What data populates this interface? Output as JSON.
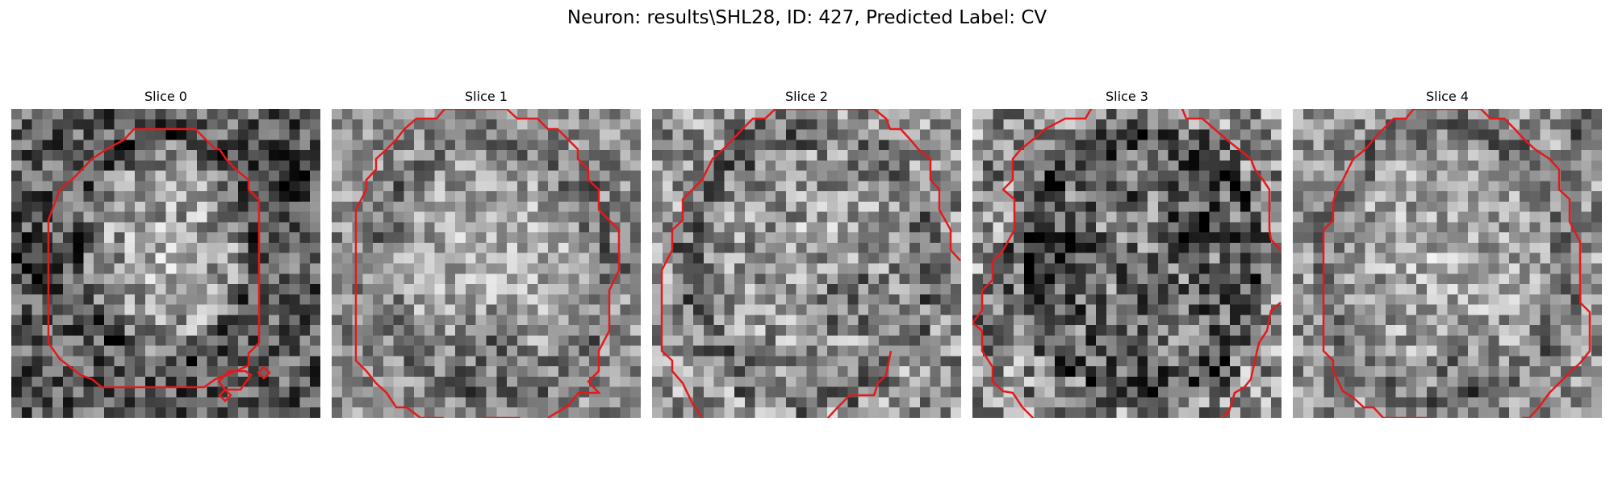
{
  "figure": {
    "title": "Neuron: results\\SHL28, ID: 427, Predicted Label: CV"
  },
  "panels": [
    {
      "title": "Slice 0"
    },
    {
      "title": "Slice 1"
    },
    {
      "title": "Slice 2"
    },
    {
      "title": "Slice 3"
    },
    {
      "title": "Slice 4"
    }
  ],
  "colors": {
    "contour": "#e31a1c",
    "background": "#ffffff"
  }
}
